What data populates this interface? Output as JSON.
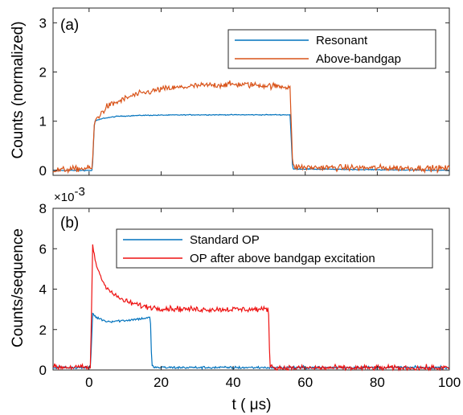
{
  "chart_data": [
    {
      "type": "line",
      "panel_label": "(a)",
      "xlabel": "",
      "ylabel": "Counts (normalized)",
      "xlim": [
        -10,
        100
      ],
      "ylim": [
        -0.1,
        3.3
      ],
      "xticks": [
        0,
        20,
        40,
        60,
        80,
        100
      ],
      "yticks": [
        0,
        1,
        2,
        3
      ],
      "yticklabels": [
        "0",
        "1",
        "2",
        "3"
      ],
      "grid": false,
      "legend_position": "top-right",
      "series": [
        {
          "name": "Resonant",
          "color": "#0072BD",
          "points": [
            [
              -10,
              0.0
            ],
            [
              0.9,
              0.0
            ],
            [
              1.5,
              1.0
            ],
            [
              4,
              1.06
            ],
            [
              8,
              1.1
            ],
            [
              15,
              1.12
            ],
            [
              30,
              1.13
            ],
            [
              45,
              1.13
            ],
            [
              55.8,
              1.13
            ],
            [
              56.5,
              0.03
            ],
            [
              100,
              0.0
            ]
          ],
          "noise": 0.008
        },
        {
          "name": "Above-bandgap",
          "color": "#D95319",
          "points": [
            [
              -10,
              0.0
            ],
            [
              0.9,
              0.05
            ],
            [
              1.5,
              1.0
            ],
            [
              5,
              1.3
            ],
            [
              12,
              1.52
            ],
            [
              20,
              1.65
            ],
            [
              30,
              1.72
            ],
            [
              40,
              1.75
            ],
            [
              48,
              1.73
            ],
            [
              55,
              1.7
            ],
            [
              55.8,
              1.7
            ],
            [
              56.5,
              0.08
            ],
            [
              60,
              0.06
            ],
            [
              100,
              0.04
            ]
          ],
          "noise": 0.06
        }
      ]
    },
    {
      "type": "line",
      "panel_label": "(b)",
      "xlabel": "t ( μs)",
      "ylabel": "Counts/sequence",
      "y_multiplier_base": "×10",
      "y_multiplier_exp": "-3",
      "xlim": [
        -10,
        100
      ],
      "ylim": [
        0,
        8
      ],
      "xticks": [
        0,
        20,
        40,
        60,
        80,
        100
      ],
      "yticks": [
        0,
        2,
        4,
        6,
        8
      ],
      "grid": false,
      "legend_position": "top-right",
      "series": [
        {
          "name": "Standard OP",
          "color": "#0072BD",
          "points": [
            [
              -10,
              0.12
            ],
            [
              0.4,
              0.12
            ],
            [
              1,
              2.8
            ],
            [
              2,
              2.6
            ],
            [
              5,
              2.4
            ],
            [
              10,
              2.45
            ],
            [
              15,
              2.55
            ],
            [
              17,
              2.6
            ],
            [
              17.4,
              0.2
            ],
            [
              18.5,
              0.12
            ],
            [
              100,
              0.12
            ]
          ],
          "noise": 0.06
        },
        {
          "name": "OP after above bandgap excitation",
          "color": "#EE1111",
          "points": [
            [
              -10,
              0.15
            ],
            [
              0.4,
              0.12
            ],
            [
              1,
              6.1
            ],
            [
              2,
              5.2
            ],
            [
              4,
              4.3
            ],
            [
              7,
              3.7
            ],
            [
              10,
              3.4
            ],
            [
              15,
              3.15
            ],
            [
              20,
              3.05
            ],
            [
              30,
              3.0
            ],
            [
              40,
              3.0
            ],
            [
              49.8,
              3.0
            ],
            [
              50.2,
              0.2
            ],
            [
              52,
              0.1
            ],
            [
              100,
              0.1
            ]
          ],
          "noise": 0.13
        }
      ]
    }
  ]
}
